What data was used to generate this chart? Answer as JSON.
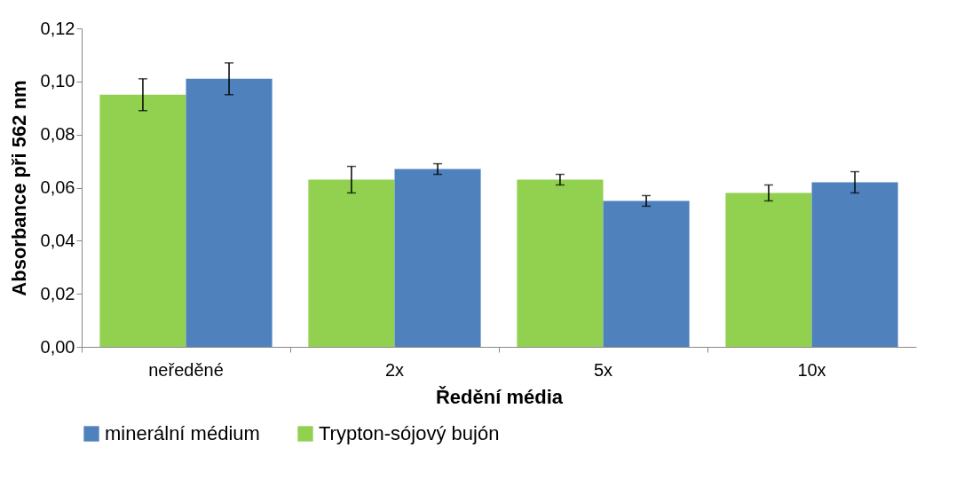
{
  "chart_data": {
    "type": "bar",
    "xlabel": "Ředění média",
    "ylabel": "Absorbance při 562 nm",
    "categories": [
      "neředěné",
      "2x",
      "5x",
      "10x"
    ],
    "series": [
      {
        "name": "Trypton-sójový bujón",
        "color": "#92d050",
        "values": [
          0.095,
          0.063,
          0.063,
          0.058
        ],
        "errors": [
          0.006,
          0.005,
          0.002,
          0.003
        ]
      },
      {
        "name": "minerální médium",
        "color": "#4f81bd",
        "values": [
          0.101,
          0.067,
          0.055,
          0.062
        ],
        "errors": [
          0.006,
          0.002,
          0.002,
          0.004
        ]
      }
    ],
    "ylim": [
      0,
      0.12
    ],
    "yticks": [
      {
        "value": 0,
        "label": "0,00"
      },
      {
        "value": 0.02,
        "label": "0,02"
      },
      {
        "value": 0.04,
        "label": "0,04"
      },
      {
        "value": 0.06,
        "label": "0,06"
      },
      {
        "value": 0.08,
        "label": "0,08"
      },
      {
        "value": 0.1,
        "label": "0,10"
      },
      {
        "value": 0.12,
        "label": "0,12"
      }
    ],
    "grid": false,
    "legend": "bottom"
  }
}
